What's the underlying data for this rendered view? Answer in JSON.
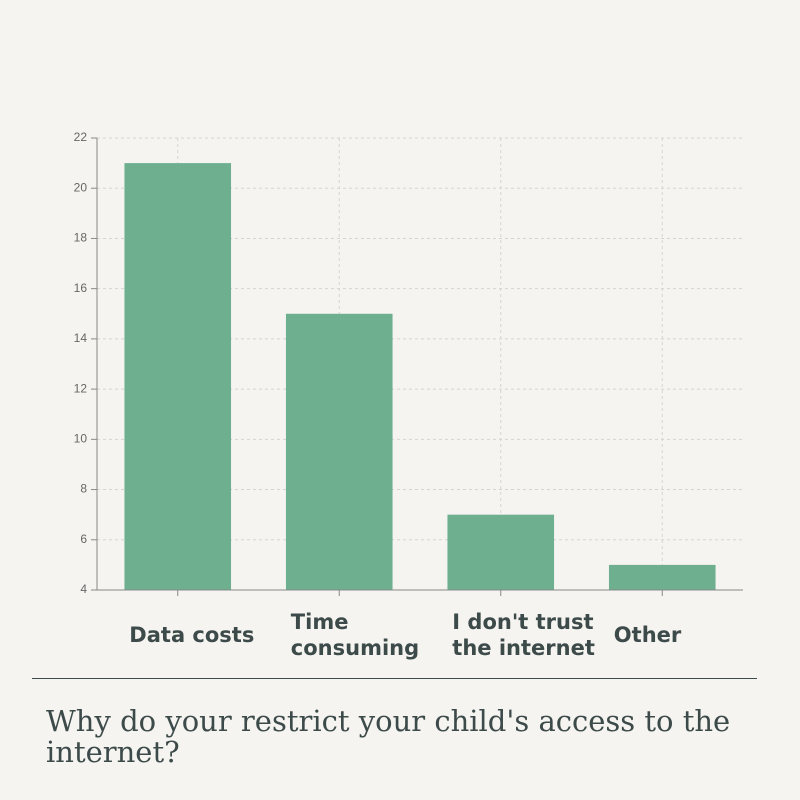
{
  "chart_data": {
    "type": "bar",
    "title": "Why do your restrict your child's access to the internet?",
    "categories": [
      "Data costs",
      "Time consuming",
      "I don't trust the internet",
      "Other"
    ],
    "values": [
      21,
      15,
      7,
      5
    ],
    "color": "#6daf8e",
    "ylim": [
      4,
      22
    ],
    "yticks": [
      4,
      6,
      8,
      10,
      12,
      14,
      16,
      18,
      20,
      22
    ],
    "grid": true
  }
}
